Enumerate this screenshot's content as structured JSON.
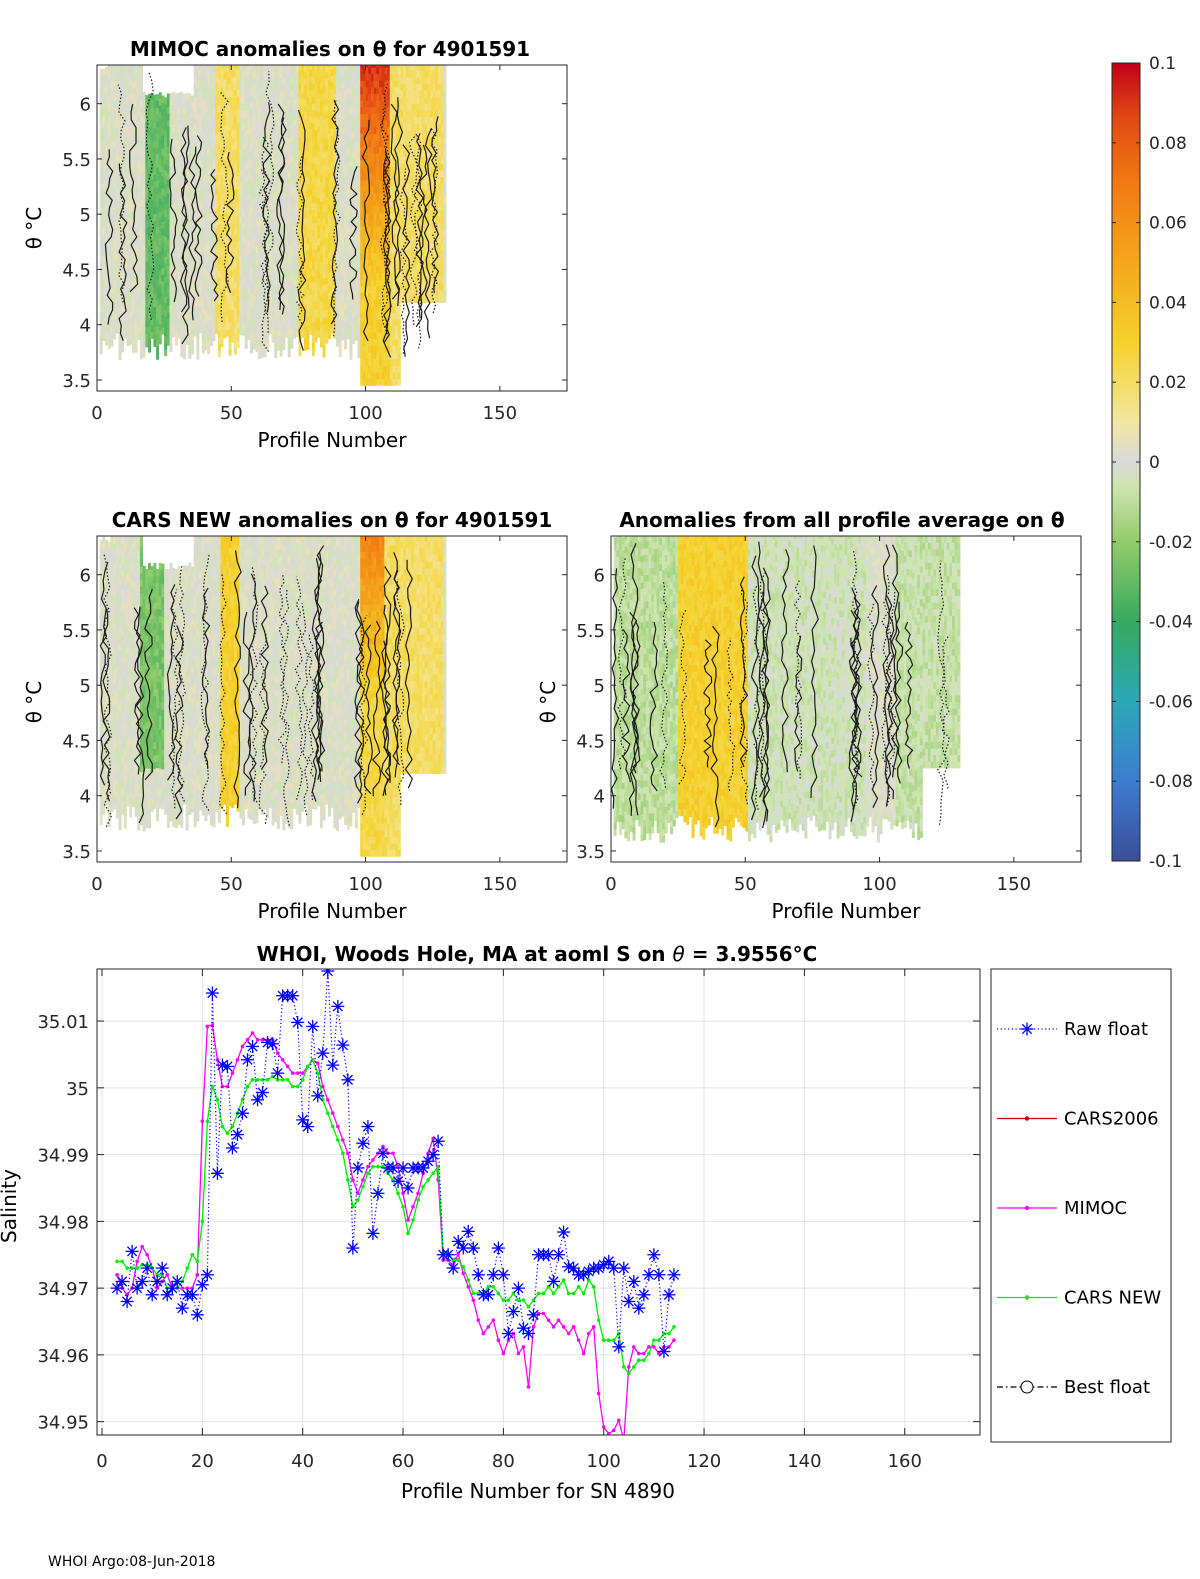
{
  "footer": "WHOI Argo:08-Jun-2018",
  "chart_data": [
    {
      "type": "heatmap",
      "title": "MIMOC anomalies on θ  for 4901591",
      "xlabel": "Profile Number",
      "ylabel": "θ °C",
      "xlim": [
        0,
        175
      ],
      "ylim": [
        3.4,
        6.35
      ],
      "xticks": [
        0,
        50,
        100,
        150
      ],
      "yticks": [
        3.5,
        4,
        4.5,
        5,
        5.5,
        6
      ],
      "ytick_labels": [
        "3.5",
        "4",
        "4.5",
        "5",
        "5.5",
        "6"
      ],
      "profile_range": [
        1,
        129
      ],
      "description_note": "colored anomaly field with black contour lines"
    },
    {
      "type": "heatmap",
      "title": "CARS NEW anomalies on θ for 4901591",
      "xlabel": "Profile Number",
      "ylabel": "θ °C",
      "xlim": [
        0,
        175
      ],
      "ylim": [
        3.4,
        6.35
      ],
      "xticks": [
        0,
        50,
        100,
        150
      ],
      "yticks": [
        3.5,
        4,
        4.5,
        5,
        5.5,
        6
      ],
      "ytick_labels": [
        "3.5",
        "4",
        "4.5",
        "5",
        "5.5",
        "6"
      ],
      "profile_range": [
        1,
        129
      ]
    },
    {
      "type": "heatmap",
      "title": "Anomalies from all profile average on θ",
      "xlabel": "Profile Number",
      "ylabel": "θ °C",
      "xlim": [
        0,
        175
      ],
      "ylim": [
        3.4,
        6.35
      ],
      "xticks": [
        0,
        50,
        100,
        150
      ],
      "yticks": [
        3.5,
        4,
        4.5,
        5,
        5.5,
        6
      ],
      "ytick_labels": [
        "3.5",
        "4",
        "4.5",
        "5",
        "5.5",
        "6"
      ],
      "profile_range": [
        1,
        129
      ]
    },
    {
      "type": "colorbar",
      "range": [
        -0.1,
        0.1
      ],
      "tick_labels": [
        "0.1",
        "0.08",
        "0.06",
        "0.04",
        "0.02",
        "0",
        "-0.02",
        "-0.04",
        "-0.06",
        "-0.08",
        "-0.1"
      ],
      "tick_values": [
        0.1,
        0.08,
        0.06,
        0.04,
        0.02,
        0,
        -0.02,
        -0.04,
        -0.06,
        -0.08,
        -0.1
      ],
      "colors": [
        "#3a4f9a",
        "#3e7ccf",
        "#2f9fd1",
        "#2ab0a0",
        "#37a95f",
        "#7dc75a",
        "#c2e29a",
        "#d9d9d9",
        "#f2e6a0",
        "#f5d22a",
        "#f4a71c",
        "#f27a12",
        "#e24a14",
        "#c00018"
      ]
    },
    {
      "type": "line",
      "title_prefix": "WHOI, Woods Hole, MA at aoml S on ",
      "title_theta": "θ",
      "title_suffix": " = 3.9556°C",
      "xlabel": "Profile Number for SN 4890",
      "ylabel": "Salinity",
      "xlim": [
        -1,
        175
      ],
      "ylim": [
        34.948,
        35.0178
      ],
      "xticks": [
        0,
        20,
        40,
        60,
        80,
        100,
        120,
        140,
        160
      ],
      "yticks": [
        34.95,
        34.96,
        34.97,
        34.98,
        34.99,
        35,
        35.01
      ],
      "ytick_labels": [
        "34.95",
        "34.96",
        "34.97",
        "34.98",
        "34.99",
        "35",
        "35.01"
      ],
      "grid": true,
      "legend_position": "right",
      "series": [
        {
          "name": "Raw float",
          "color": "#0000ff",
          "style": "dotted",
          "marker": "asterisk",
          "x": [
            3,
            4,
            5,
            6,
            7,
            8,
            9,
            10,
            11,
            12,
            13,
            14,
            15,
            16,
            17,
            18,
            19,
            20,
            21,
            22,
            23,
            24,
            25,
            26,
            27,
            28,
            29,
            30,
            31,
            32,
            33,
            34,
            35,
            36,
            37,
            38,
            39,
            40,
            41,
            42,
            43,
            44,
            45,
            46,
            47,
            48,
            49,
            50,
            51,
            52,
            53,
            54,
            55,
            56,
            57,
            58,
            59,
            60,
            61,
            62,
            63,
            64,
            65,
            66,
            67,
            68,
            69,
            70,
            71,
            72,
            73,
            74,
            75,
            76,
            77,
            78,
            79,
            80,
            81,
            82,
            83,
            84,
            85,
            86,
            87,
            88,
            89,
            90,
            91,
            92,
            93,
            94,
            95,
            96,
            97,
            98,
            99,
            100,
            101,
            102,
            103,
            104,
            105,
            106,
            107,
            108,
            109,
            110,
            111,
            112,
            113,
            114
          ],
          "values": [
            34.97,
            34.971,
            34.968,
            34.9755,
            34.97,
            34.971,
            34.973,
            34.969,
            34.971,
            34.973,
            34.969,
            34.97,
            34.971,
            34.967,
            34.969,
            34.969,
            34.966,
            34.9705,
            34.972,
            35.0142,
            34.9872,
            35.0034,
            35.0032,
            34.991,
            34.993,
            34.9962,
            35.0042,
            35.0062,
            34.9982,
            34.9993,
            35.0068,
            35.0066,
            35.0022,
            35.0138,
            35.0138,
            35.0138,
            35.0098,
            34.9952,
            34.9942,
            35.0092,
            34.9988,
            35.0052,
            35.0175,
            35.0034,
            35.0122,
            35.0064,
            35.0012,
            34.976,
            34.988,
            34.9917,
            34.9942,
            34.9782,
            34.9842,
            34.9902,
            34.988,
            34.988,
            34.986,
            34.988,
            34.985,
            34.988,
            34.988,
            34.988,
            34.989,
            34.99,
            34.992,
            34.975,
            34.975,
            34.973,
            34.977,
            34.976,
            34.9785,
            34.976,
            34.972,
            34.969,
            34.969,
            34.972,
            34.976,
            34.972,
            34.9632,
            34.9665,
            34.97,
            34.964,
            34.9632,
            34.966,
            34.975,
            34.975,
            34.975,
            34.971,
            34.975,
            34.9784,
            34.9732,
            34.973,
            34.972,
            34.972,
            34.9725,
            34.973,
            34.973,
            34.9735,
            34.974,
            34.973,
            34.9612,
            34.973,
            34.968,
            34.971,
            34.967,
            34.969,
            34.972,
            34.975,
            34.972,
            34.9605,
            34.969,
            34.972
          ]
        },
        {
          "name": "CARS2006",
          "color": "#cc0000",
          "style": "solid",
          "marker": "dot",
          "x": [],
          "values": []
        },
        {
          "name": "MIMOC",
          "color": "#ff00ff",
          "style": "solid",
          "marker": "dot",
          "x": [
            3,
            4,
            5,
            6,
            7,
            8,
            9,
            10,
            11,
            12,
            13,
            14,
            15,
            16,
            17,
            18,
            19,
            20,
            21,
            22,
            23,
            24,
            25,
            26,
            27,
            28,
            29,
            30,
            31,
            32,
            33,
            34,
            35,
            36,
            37,
            38,
            39,
            40,
            41,
            42,
            43,
            44,
            45,
            46,
            47,
            48,
            49,
            50,
            51,
            52,
            53,
            54,
            55,
            56,
            57,
            58,
            59,
            60,
            61,
            62,
            63,
            64,
            65,
            66,
            67,
            68,
            69,
            70,
            71,
            72,
            73,
            74,
            75,
            76,
            77,
            78,
            79,
            80,
            81,
            82,
            83,
            84,
            85,
            86,
            87,
            88,
            89,
            90,
            91,
            92,
            93,
            94,
            95,
            96,
            97,
            98,
            99,
            100,
            101,
            102,
            103,
            104,
            105,
            106,
            107,
            108,
            109,
            110,
            111,
            112,
            113,
            114
          ],
          "values": [
            34.972,
            34.97,
            34.969,
            34.97,
            34.974,
            34.9762,
            34.975,
            34.973,
            34.97,
            34.971,
            34.972,
            34.97,
            34.97,
            34.97,
            34.97,
            34.97,
            34.972,
            34.995,
            35.0092,
            35.0094,
            35.0042,
            35.0002,
            35.0002,
            35.0022,
            35.0042,
            35.0062,
            35.0072,
            35.0082,
            35.0072,
            35.0072,
            35.0072,
            35.0072,
            35.0052,
            35.0042,
            35.0032,
            35.0022,
            35.0022,
            35.0022,
            35.0032,
            35.0042,
            35.0037,
            35.0002,
            34.9982,
            34.9962,
            34.9942,
            34.9922,
            34.9902,
            34.9862,
            34.9842,
            34.9862,
            34.9882,
            34.9892,
            34.9902,
            34.9912,
            34.9902,
            34.9902,
            34.9882,
            34.9842,
            34.9802,
            34.9822,
            34.9842,
            34.9872,
            34.9902,
            34.9924,
            34.9862,
            34.9742,
            34.9742,
            34.9732,
            34.9752,
            34.9722,
            34.9702,
            34.9682,
            34.9652,
            34.9632,
            34.9642,
            34.9652,
            34.9622,
            34.9602,
            34.9622,
            34.9632,
            34.9602,
            34.9612,
            34.9552,
            34.9642,
            34.9662,
            34.9662,
            34.9652,
            34.9642,
            34.9652,
            34.9642,
            34.9632,
            34.9642,
            34.9622,
            34.9602,
            34.9632,
            34.9642,
            34.9542,
            34.9492,
            34.9482,
            34.9487,
            34.9502,
            34.9472,
            34.9582,
            34.9612,
            34.9602,
            34.9602,
            34.9612,
            34.9612,
            34.9602,
            34.9612,
            34.9612,
            34.9622
          ]
        },
        {
          "name": "CARS NEW",
          "color": "#00ee00",
          "style": "solid",
          "marker": "dot",
          "x": [
            3,
            4,
            5,
            6,
            7,
            8,
            9,
            10,
            11,
            12,
            13,
            14,
            15,
            16,
            17,
            18,
            19,
            20,
            21,
            22,
            23,
            24,
            25,
            26,
            27,
            28,
            29,
            30,
            31,
            32,
            33,
            34,
            35,
            36,
            37,
            38,
            39,
            40,
            41,
            42,
            43,
            44,
            45,
            46,
            47,
            48,
            49,
            50,
            51,
            52,
            53,
            54,
            55,
            56,
            57,
            58,
            59,
            60,
            61,
            62,
            63,
            64,
            65,
            66,
            67,
            68,
            69,
            70,
            71,
            72,
            73,
            74,
            75,
            76,
            77,
            78,
            79,
            80,
            81,
            82,
            83,
            84,
            85,
            86,
            87,
            88,
            89,
            90,
            91,
            92,
            93,
            94,
            95,
            96,
            97,
            98,
            99,
            100,
            101,
            102,
            103,
            104,
            105,
            106,
            107,
            108,
            109,
            110,
            111,
            112,
            113,
            114
          ],
          "values": [
            34.974,
            34.974,
            34.973,
            34.973,
            34.973,
            34.9735,
            34.9735,
            34.973,
            34.972,
            34.972,
            34.97,
            34.97,
            34.97,
            34.971,
            34.973,
            34.975,
            34.974,
            34.98,
            34.995,
            35.0002,
            34.9982,
            34.9942,
            34.9932,
            34.9942,
            34.9962,
            34.9982,
            35.0002,
            35.0012,
            35.0012,
            35.0012,
            35.0012,
            35.0017,
            35.0012,
            35.0012,
            35.0012,
            35.0002,
            35.0002,
            35.0012,
            35.0032,
            35.0042,
            35.0022,
            34.9982,
            34.9962,
            34.9942,
            34.9922,
            34.9902,
            34.9862,
            34.9822,
            34.9832,
            34.9852,
            34.9872,
            34.9882,
            34.9882,
            34.9882,
            34.9872,
            34.9862,
            34.9842,
            34.9822,
            34.9782,
            34.9802,
            34.9832,
            34.9852,
            34.9862,
            34.9872,
            34.9882,
            34.9752,
            34.9752,
            34.9742,
            34.9742,
            34.9732,
            34.9712,
            34.9692,
            34.9692,
            34.9692,
            34.9702,
            34.9702,
            34.9692,
            34.9682,
            34.9682,
            34.9692,
            34.9682,
            34.9682,
            34.9672,
            34.9682,
            34.9692,
            34.9692,
            34.9702,
            34.9692,
            34.9702,
            34.9712,
            34.9692,
            34.9692,
            34.9702,
            34.9692,
            34.9712,
            34.9702,
            34.9652,
            34.9622,
            34.9622,
            34.9622,
            34.9632,
            34.9582,
            34.9572,
            34.9582,
            34.9592,
            34.9592,
            34.9602,
            34.9622,
            34.9622,
            34.9632,
            34.9632,
            34.9642
          ]
        },
        {
          "name": "Best float",
          "color": "#000000",
          "style": "dashdot",
          "marker": "circle",
          "x": [],
          "values": []
        }
      ]
    }
  ]
}
